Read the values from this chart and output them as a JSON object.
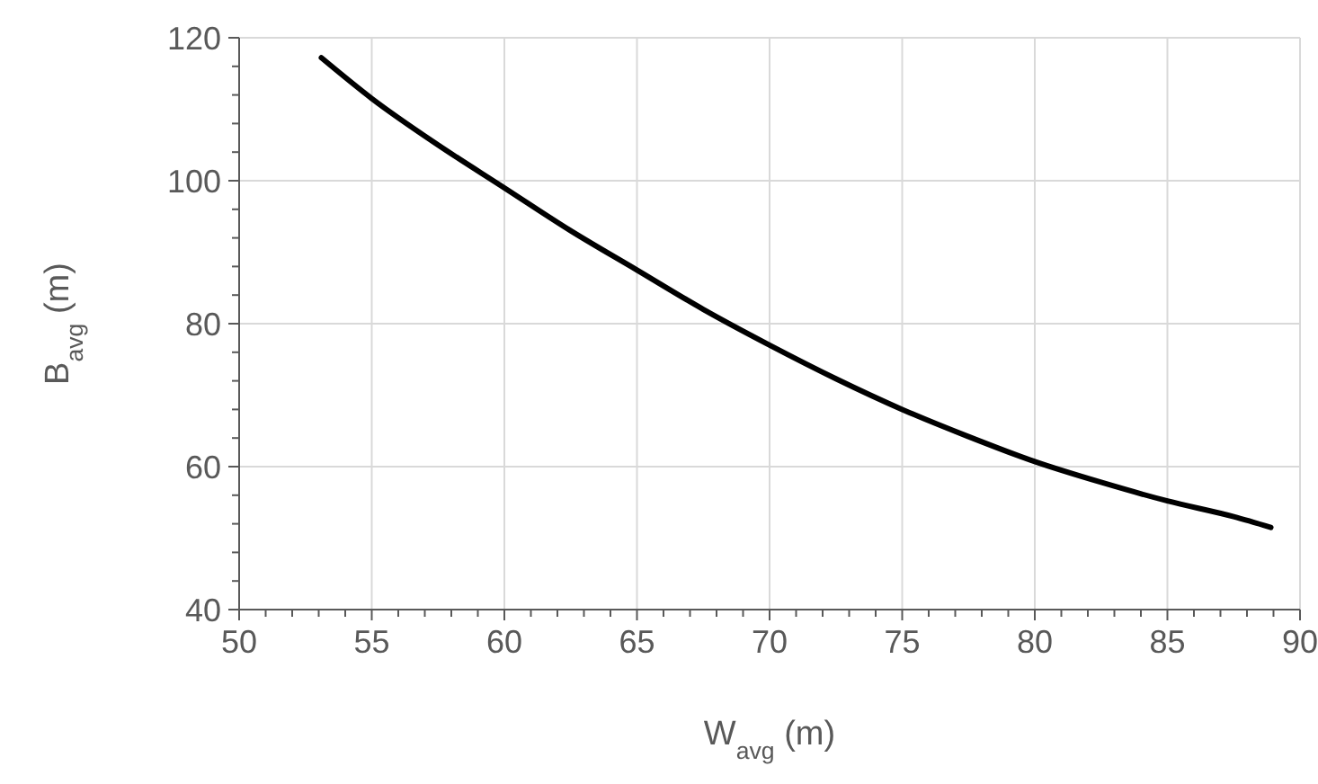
{
  "chart_data": {
    "type": "line",
    "xlabel": "W$_{avg}$ (m)",
    "ylabel": "B$_{avg}$ (m)",
    "x": [
      53.1,
      55,
      57.5,
      60,
      62.5,
      65,
      67.5,
      70,
      72.5,
      75,
      77.5,
      80,
      82.5,
      85,
      87.5,
      88.9
    ],
    "series": [
      {
        "color": "#000000",
        "values": [
          117.2,
          111.5,
          105,
          99,
          93,
          87.5,
          82,
          77,
          72.3,
          68,
          64.2,
          60.7,
          57.8,
          55.2,
          53,
          51.5
        ]
      }
    ],
    "xlim": [
      50,
      90
    ],
    "ylim": [
      40,
      120
    ],
    "xticks": [
      50,
      {
        "value": 51,
        "label": null
      },
      {
        "value": 52,
        "label": null
      },
      {
        "value": 53,
        "label": null
      },
      {
        "value": 54,
        "label": null
      },
      55,
      {
        "value": 56,
        "label": null
      },
      {
        "value": 57,
        "label": null
      },
      {
        "value": 58,
        "label": null
      },
      {
        "value": 59,
        "label": null
      },
      60,
      {
        "value": 61,
        "label": null
      },
      {
        "value": 62,
        "label": null
      },
      {
        "value": 63,
        "label": null
      },
      {
        "value": 64,
        "label": null
      },
      65,
      {
        "value": 66,
        "label": null
      },
      {
        "value": 67,
        "label": null
      },
      {
        "value": 68,
        "label": null
      },
      {
        "value": 69,
        "label": null
      },
      70,
      {
        "value": 71,
        "label": null
      },
      {
        "value": 72,
        "label": null
      },
      {
        "value": 73,
        "label": null
      },
      {
        "value": 74,
        "label": null
      },
      75,
      {
        "value": 76,
        "label": null
      },
      {
        "value": 77,
        "label": null
      },
      {
        "value": 78,
        "label": null
      },
      {
        "value": 79,
        "label": null
      },
      80,
      {
        "value": 81,
        "label": null
      },
      {
        "value": 82,
        "label": null
      },
      {
        "value": 83,
        "label": null
      },
      {
        "value": 84,
        "label": null
      },
      85,
      {
        "value": 86,
        "label": null
      },
      {
        "value": 87,
        "label": null
      },
      {
        "value": 88,
        "label": null
      },
      {
        "value": 89,
        "label": null
      },
      90
    ],
    "yticks": [
      40,
      {
        "value": 44,
        "label": null
      },
      {
        "value": 48,
        "label": null
      },
      {
        "value": 52,
        "label": null
      },
      {
        "value": 56,
        "label": null
      },
      60,
      {
        "value": 64,
        "label": null
      },
      {
        "value": 68,
        "label": null
      },
      {
        "value": 72,
        "label": null
      },
      {
        "value": 76,
        "label": null
      },
      80,
      {
        "value": 84,
        "label": null
      },
      {
        "value": 88,
        "label": null
      },
      {
        "value": 92,
        "label": null
      },
      {
        "value": 96,
        "label": null
      },
      100,
      {
        "value": 104,
        "label": null
      },
      {
        "value": 108,
        "label": null
      },
      {
        "value": 112,
        "label": null
      },
      {
        "value": 116,
        "label": null
      },
      120
    ],
    "grid": true,
    "line_style": "solid",
    "marker": "none"
  }
}
